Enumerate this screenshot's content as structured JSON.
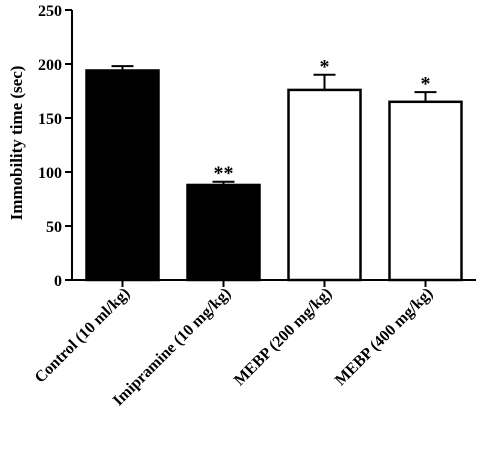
{
  "chart_data": {
    "type": "bar",
    "ylabel": "Immobility time (sec)",
    "xlabel": "",
    "ylim": [
      0,
      250
    ],
    "yticks": [
      0,
      50,
      100,
      150,
      200,
      250
    ],
    "categories": [
      "Control (10 ml/kg)",
      "Imipramine (10 mg/kg)",
      "MEBP (200 mg/kg)",
      "MEBP (400 mg/kg)"
    ],
    "values": [
      194,
      88,
      176,
      165
    ],
    "errors": [
      4,
      3,
      14,
      9
    ],
    "annotations": [
      "",
      "**",
      "*",
      "*"
    ],
    "bar_fills": [
      "#000000",
      "#000000",
      "#ffffff",
      "#ffffff"
    ],
    "grid": false,
    "legend": "none"
  }
}
